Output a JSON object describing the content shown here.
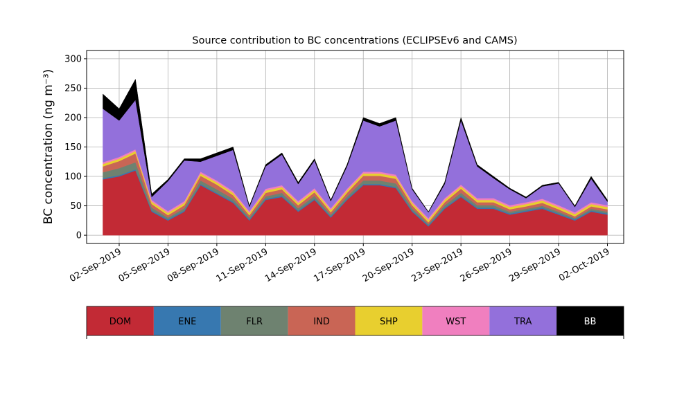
{
  "chart_data": {
    "type": "stacked_area",
    "title": "Source contribution to BC concentrations (ECLIPSEv6 and CAMS)",
    "y_label": "BC concentration (ng m⁻³)",
    "x": [
      "2019-09-01",
      "2019-09-02",
      "2019-09-03",
      "2019-09-04",
      "2019-09-05",
      "2019-09-06",
      "2019-09-07",
      "2019-09-08",
      "2019-09-09",
      "2019-09-10",
      "2019-09-11",
      "2019-09-12",
      "2019-09-13",
      "2019-09-14",
      "2019-09-15",
      "2019-09-16",
      "2019-09-17",
      "2019-09-18",
      "2019-09-19",
      "2019-09-20",
      "2019-09-21",
      "2019-09-22",
      "2019-09-23",
      "2019-09-24",
      "2019-09-25",
      "2019-09-26",
      "2019-09-27",
      "2019-09-28",
      "2019-09-29",
      "2019-09-30",
      "2019-10-01",
      "2019-10-02"
    ],
    "series": [
      {
        "name": "DOM",
        "color": "#c22a35",
        "values": [
          95,
          100,
          110,
          40,
          25,
          40,
          85,
          70,
          55,
          25,
          60,
          65,
          40,
          60,
          30,
          60,
          85,
          85,
          80,
          40,
          15,
          45,
          65,
          45,
          45,
          35,
          40,
          45,
          35,
          25,
          40,
          35
        ]
      },
      {
        "name": "ENE",
        "color": "#3778b0",
        "values": [
          2,
          2,
          2,
          2,
          2,
          2,
          2,
          2,
          2,
          2,
          2,
          2,
          2,
          2,
          2,
          2,
          2,
          2,
          2,
          2,
          2,
          2,
          2,
          2,
          2,
          2,
          2,
          2,
          2,
          2,
          2,
          2
        ]
      },
      {
        "name": "FLR",
        "color": "#6e8270",
        "values": [
          10,
          12,
          12,
          5,
          3,
          4,
          6,
          6,
          5,
          3,
          4,
          5,
          4,
          5,
          3,
          4,
          6,
          6,
          6,
          4,
          2,
          4,
          5,
          4,
          4,
          3,
          3,
          3,
          3,
          2,
          3,
          3
        ]
      },
      {
        "name": "IND",
        "color": "#c96555",
        "values": [
          10,
          12,
          15,
          6,
          4,
          5,
          8,
          8,
          6,
          4,
          6,
          6,
          5,
          6,
          4,
          6,
          8,
          8,
          8,
          5,
          3,
          5,
          7,
          5,
          5,
          4,
          4,
          5,
          4,
          3,
          4,
          4
        ]
      },
      {
        "name": "SHP",
        "color": "#e8cf2f",
        "values": [
          4,
          4,
          4,
          4,
          4,
          4,
          4,
          4,
          4,
          4,
          4,
          4,
          4,
          4,
          4,
          4,
          4,
          4,
          4,
          4,
          4,
          4,
          4,
          4,
          4,
          4,
          4,
          4,
          4,
          4,
          4,
          4
        ]
      },
      {
        "name": "WST",
        "color": "#f07fbf",
        "values": [
          3,
          3,
          3,
          3,
          3,
          3,
          3,
          3,
          3,
          3,
          3,
          3,
          3,
          3,
          3,
          3,
          3,
          3,
          3,
          3,
          3,
          3,
          3,
          3,
          3,
          3,
          3,
          3,
          3,
          3,
          3,
          3
        ]
      },
      {
        "name": "TRA",
        "color": "#9370db",
        "values": [
          91,
          62,
          84,
          5,
          51,
          69,
          17,
          42,
          70,
          7,
          38,
          52,
          29,
          47,
          12,
          38,
          87,
          77,
          92,
          20,
          10,
          24,
          109,
          54,
          34,
          27,
          7,
          21,
          37,
          9,
          40,
          6
        ]
      },
      {
        "name": "BB",
        "color": "#000000",
        "values": [
          25,
          20,
          35,
          5,
          3,
          3,
          5,
          5,
          5,
          2,
          3,
          3,
          3,
          3,
          2,
          3,
          5,
          5,
          5,
          2,
          1,
          3,
          5,
          3,
          3,
          2,
          2,
          2,
          2,
          2,
          4,
          3
        ]
      }
    ],
    "xlim": [
      "2019-08-31",
      "2019-10-03"
    ],
    "xticks": [
      {
        "value": "2019-09-02",
        "label": "02-Sep-2019"
      },
      {
        "value": "2019-09-05",
        "label": "05-Sep-2019"
      },
      {
        "value": "2019-09-08",
        "label": "08-Sep-2019"
      },
      {
        "value": "2019-09-11",
        "label": "11-Sep-2019"
      },
      {
        "value": "2019-09-14",
        "label": "14-Sep-2019"
      },
      {
        "value": "2019-09-17",
        "label": "17-Sep-2019"
      },
      {
        "value": "2019-09-20",
        "label": "20-Sep-2019"
      },
      {
        "value": "2019-09-23",
        "label": "23-Sep-2019"
      },
      {
        "value": "2019-09-26",
        "label": "26-Sep-2019"
      },
      {
        "value": "2019-09-29",
        "label": "29-Sep-2019"
      },
      {
        "value": "2019-10-02",
        "label": "02-Oct-2019"
      }
    ],
    "ylim": [
      -14,
      314
    ],
    "yticks": [
      0,
      50,
      100,
      150,
      200,
      250,
      300
    ],
    "grid": true,
    "legend": "bottom"
  }
}
